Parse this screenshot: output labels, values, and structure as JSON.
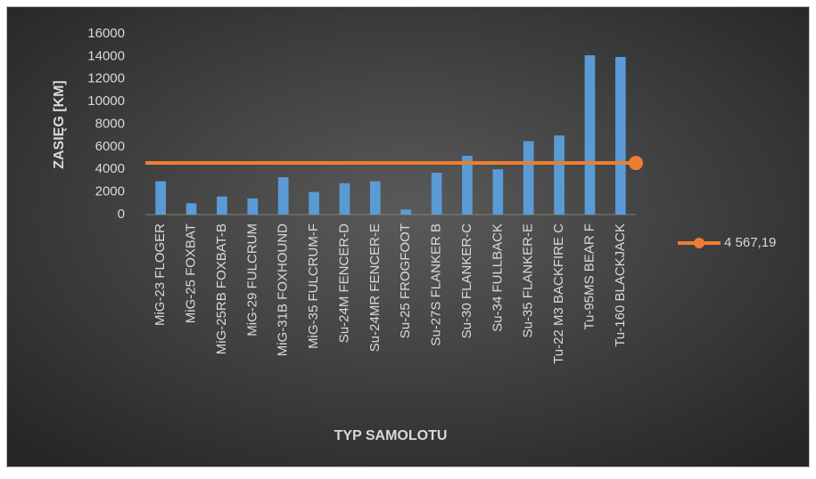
{
  "chart_data": {
    "type": "bar",
    "x_label": "TYP SAMOLOTU",
    "y_label": "ZASIĘG [KM]",
    "categories": [
      "MiG-23 FLOGER",
      "MiG-25 FOXBAT",
      "MiG-25RB FOXBAT-B",
      "MiG-29 FULCRUM",
      "MiG-31B FOXHOUND",
      "MiG-35 FULCRUM-F",
      "Su-24M FENCER-D",
      "Su-24MR FENCER-E",
      "Su-25 FROGFOOT",
      "Su-27S FLANKER B",
      "Su-30 FLANKER-C",
      "Su-34 FULLBACK",
      "Su-35 FLANKER-E",
      "Tu-22 M3 BACKFIRE C",
      "Tu-95MS BEAR F",
      "Tu-160 BLACKJACK"
    ],
    "values": [
      2950,
      1000,
      1600,
      1430,
      3300,
      2000,
      2775,
      2950,
      450,
      3700,
      5200,
      4000,
      6500,
      7000,
      14100,
      13950
    ],
    "color": "#5b9bd5",
    "ylim": [
      0,
      16000
    ],
    "yticks": [
      0,
      2000,
      4000,
      6000,
      8000,
      10000,
      12000,
      14000,
      16000
    ],
    "reference_line": {
      "name": "4 567,19",
      "value": 4567.19,
      "color": "#ed7d31"
    },
    "legend": "right"
  }
}
